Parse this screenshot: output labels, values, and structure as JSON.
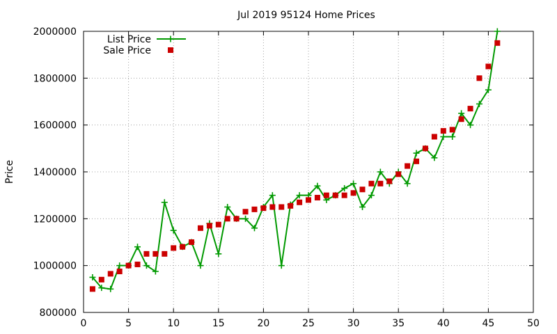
{
  "chart_data": {
    "type": "line",
    "title": "Jul 2019 95124 Home Prices",
    "xlabel": "",
    "ylabel": "Price",
    "xlim": [
      0,
      50
    ],
    "ylim": [
      800000,
      2000000
    ],
    "x_ticks": [
      "0",
      "5",
      "10",
      "15",
      "20",
      "25",
      "30",
      "35",
      "40",
      "45",
      "50"
    ],
    "y_ticks": [
      "800000",
      "1000000",
      "1200000",
      "1400000",
      "1600000",
      "1800000",
      "2000000"
    ],
    "grid": true,
    "legend_position": "top-left",
    "x": [
      1,
      2,
      3,
      4,
      5,
      6,
      7,
      8,
      9,
      10,
      11,
      12,
      13,
      14,
      15,
      16,
      17,
      18,
      19,
      20,
      21,
      22,
      23,
      24,
      25,
      26,
      27,
      28,
      29,
      30,
      31,
      32,
      33,
      34,
      35,
      36,
      37,
      38,
      39,
      40,
      41,
      42,
      43,
      44,
      45,
      46
    ],
    "series": [
      {
        "name": "List Price",
        "style": "line-plus",
        "color": "#009900",
        "values": [
          950000,
          905000,
          900000,
          1000000,
          1000000,
          1080000,
          1000000,
          975000,
          1270000,
          1150000,
          1080000,
          1100000,
          1000000,
          1180000,
          1050000,
          1250000,
          1200000,
          1200000,
          1160000,
          1250000,
          1300000,
          1000000,
          1260000,
          1300000,
          1300000,
          1340000,
          1280000,
          1300000,
          1330000,
          1350000,
          1250000,
          1300000,
          1400000,
          1350000,
          1400000,
          1350000,
          1480000,
          1500000,
          1460000,
          1550000,
          1550000,
          1650000,
          1600000,
          1690000,
          1750000,
          2000000
        ]
      },
      {
        "name": "Sale Price",
        "style": "square-points",
        "color": "#cc0000",
        "values": [
          900000,
          940000,
          965000,
          975000,
          1000000,
          1005000,
          1050000,
          1050000,
          1050000,
          1075000,
          1080000,
          1100000,
          1160000,
          1170000,
          1175000,
          1200000,
          1200000,
          1230000,
          1240000,
          1245000,
          1250000,
          1250000,
          1255000,
          1270000,
          1280000,
          1290000,
          1300000,
          1300000,
          1300000,
          1310000,
          1325000,
          1350000,
          1350000,
          1360000,
          1390000,
          1425000,
          1445000,
          1500000,
          1550000,
          1575000,
          1580000,
          1625000,
          1670000,
          1800000,
          1850000,
          1950000
        ]
      }
    ]
  }
}
